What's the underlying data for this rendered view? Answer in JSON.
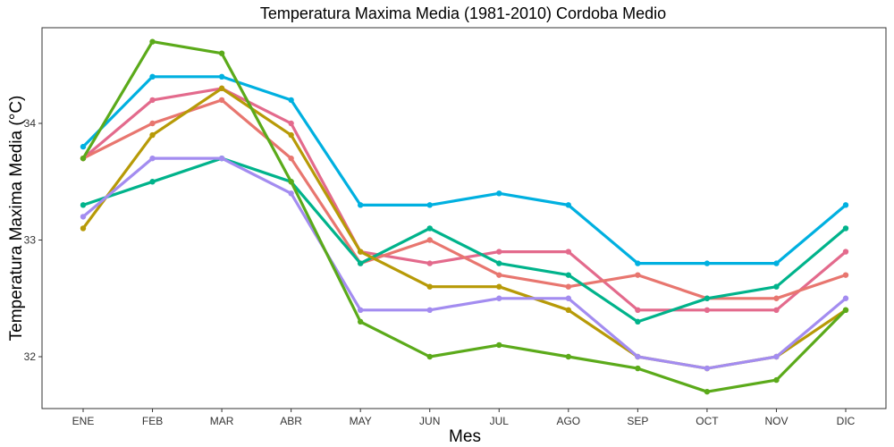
{
  "chart_data": {
    "type": "line",
    "title": "Temperatura Maxima Media (1981-2010)  Cordoba Medio",
    "xlabel": "Mes",
    "ylabel": "Temperatura Maxima Media  (°C)",
    "categories": [
      "ENE",
      "FEB",
      "MAR",
      "ABR",
      "MAY",
      "JUN",
      "JUL",
      "AGO",
      "SEP",
      "OCT",
      "NOV",
      "DIC"
    ],
    "ylim": [
      31.55,
      34.7
    ],
    "yticks": [
      32,
      33,
      34
    ],
    "grid": false,
    "legend": "none",
    "series": [
      {
        "color": "#00B0E0",
        "values": [
          33.8,
          34.4,
          34.4,
          34.2,
          33.3,
          33.3,
          33.4,
          33.3,
          32.8,
          32.8,
          32.8,
          33.3
        ]
      },
      {
        "color": "#E36A8C",
        "values": [
          33.7,
          34.2,
          34.3,
          34.0,
          32.9,
          32.8,
          32.9,
          32.9,
          32.4,
          32.4,
          32.4,
          32.9
        ]
      },
      {
        "color": "#E8766F",
        "values": [
          33.7,
          34.0,
          34.2,
          33.7,
          32.8,
          33.0,
          32.7,
          32.6,
          32.7,
          32.5,
          32.5,
          32.7
        ]
      },
      {
        "color": "#00B38B",
        "values": [
          33.3,
          33.5,
          33.7,
          33.5,
          32.8,
          33.1,
          32.8,
          32.7,
          32.3,
          32.5,
          32.6,
          33.1
        ]
      },
      {
        "color": "#B79A07",
        "values": [
          33.1,
          33.9,
          34.3,
          33.9,
          32.9,
          32.6,
          32.6,
          32.4,
          32.0,
          31.9,
          32.0,
          32.4
        ]
      },
      {
        "color": "#A38CF0",
        "values": [
          33.2,
          33.7,
          33.7,
          33.4,
          32.4,
          32.4,
          32.5,
          32.5,
          32.0,
          31.9,
          32.0,
          32.5
        ]
      },
      {
        "color": "#5BAA1A",
        "values": [
          33.7,
          34.7,
          34.6,
          33.5,
          32.3,
          32.0,
          32.1,
          32.0,
          31.9,
          31.7,
          31.8,
          32.4
        ]
      }
    ]
  }
}
